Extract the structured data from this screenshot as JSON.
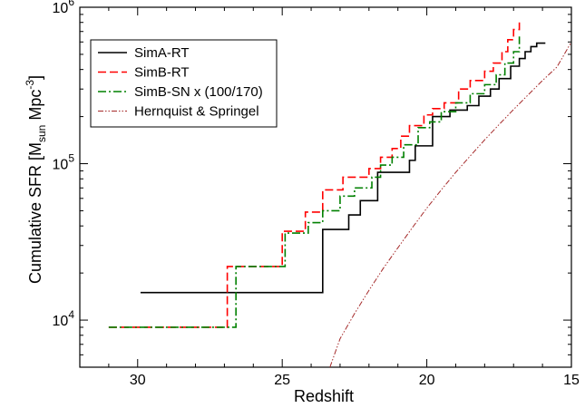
{
  "chart_data": {
    "type": "line",
    "xlabel": "Redshift",
    "ylabel": {
      "base": "Cumulative SFR [M",
      "sub": "sun",
      "mid": " Mpc",
      "sup": "-3",
      "end": "]"
    },
    "xlim": [
      32,
      15
    ],
    "xaxis_reversed": true,
    "ylim": [
      5000,
      1000000
    ],
    "yscale": "log",
    "grid": false,
    "legend_position": "top-left",
    "x_ticks": [
      {
        "value": 30,
        "label": "30"
      },
      {
        "value": 25,
        "label": "25"
      },
      {
        "value": 20,
        "label": "20"
      },
      {
        "value": 15,
        "label": "15"
      }
    ],
    "y_ticks": [
      {
        "value": 10000,
        "base": "10",
        "exp": "4"
      },
      {
        "value": 100000,
        "base": "10",
        "exp": "5"
      },
      {
        "value": 1000000,
        "base": "10",
        "exp": "6"
      }
    ],
    "series": [
      {
        "name": "SimA-RT",
        "color": "#000000",
        "dash": "solid",
        "step": true,
        "points": [
          [
            29.9,
            15000
          ],
          [
            23.6,
            15000
          ],
          [
            23.6,
            38000
          ],
          [
            22.7,
            38000
          ],
          [
            22.7,
            47000
          ],
          [
            22.3,
            47000
          ],
          [
            22.3,
            58000
          ],
          [
            21.7,
            58000
          ],
          [
            21.7,
            88000
          ],
          [
            20.6,
            88000
          ],
          [
            20.6,
            105000
          ],
          [
            20.4,
            105000
          ],
          [
            20.4,
            130000
          ],
          [
            19.8,
            130000
          ],
          [
            19.8,
            200000
          ],
          [
            19.2,
            200000
          ],
          [
            19.2,
            220000
          ],
          [
            18.6,
            220000
          ],
          [
            18.6,
            235000
          ],
          [
            18.2,
            235000
          ],
          [
            18.2,
            270000
          ],
          [
            17.8,
            270000
          ],
          [
            17.8,
            300000
          ],
          [
            17.5,
            300000
          ],
          [
            17.5,
            350000
          ],
          [
            17.1,
            350000
          ],
          [
            17.1,
            420000
          ],
          [
            16.8,
            420000
          ],
          [
            16.8,
            470000
          ],
          [
            16.6,
            470000
          ],
          [
            16.6,
            520000
          ],
          [
            16.4,
            520000
          ],
          [
            16.4,
            560000
          ],
          [
            16.2,
            560000
          ],
          [
            16.2,
            590000
          ],
          [
            15.9,
            590000
          ]
        ]
      },
      {
        "name": "SimB-RT",
        "color": "#ff0000",
        "dash": "dashed",
        "step": true,
        "points": [
          [
            31.0,
            9000
          ],
          [
            26.9,
            9000
          ],
          [
            26.9,
            22000
          ],
          [
            25.0,
            22000
          ],
          [
            25.0,
            37000
          ],
          [
            24.2,
            37000
          ],
          [
            24.2,
            49000
          ],
          [
            23.6,
            49000
          ],
          [
            23.6,
            68000
          ],
          [
            22.9,
            68000
          ],
          [
            22.9,
            82000
          ],
          [
            22.0,
            82000
          ],
          [
            22.0,
            93000
          ],
          [
            21.6,
            93000
          ],
          [
            21.6,
            110000
          ],
          [
            21.2,
            110000
          ],
          [
            21.2,
            125000
          ],
          [
            20.9,
            125000
          ],
          [
            20.9,
            150000
          ],
          [
            20.6,
            150000
          ],
          [
            20.6,
            175000
          ],
          [
            20.1,
            175000
          ],
          [
            20.1,
            205000
          ],
          [
            19.8,
            205000
          ],
          [
            19.8,
            225000
          ],
          [
            19.4,
            225000
          ],
          [
            19.4,
            245000
          ],
          [
            18.9,
            245000
          ],
          [
            18.9,
            300000
          ],
          [
            18.5,
            300000
          ],
          [
            18.5,
            340000
          ],
          [
            18.0,
            340000
          ],
          [
            18.0,
            390000
          ],
          [
            17.7,
            390000
          ],
          [
            17.7,
            440000
          ],
          [
            17.4,
            440000
          ],
          [
            17.4,
            520000
          ],
          [
            17.2,
            520000
          ],
          [
            17.2,
            620000
          ],
          [
            17.0,
            620000
          ],
          [
            17.0,
            720000
          ],
          [
            16.8,
            720000
          ],
          [
            16.8,
            800000
          ]
        ]
      },
      {
        "name": "SimB-SN x (100/170)",
        "color": "#008000",
        "dash": "dashdot",
        "step": true,
        "points": [
          [
            31.0,
            9000
          ],
          [
            26.6,
            9000
          ],
          [
            26.6,
            22000
          ],
          [
            24.9,
            22000
          ],
          [
            24.9,
            36000
          ],
          [
            24.1,
            36000
          ],
          [
            24.1,
            42000
          ],
          [
            23.6,
            42000
          ],
          [
            23.6,
            50000
          ],
          [
            23.0,
            50000
          ],
          [
            23.0,
            62000
          ],
          [
            22.5,
            62000
          ],
          [
            22.5,
            70000
          ],
          [
            21.9,
            70000
          ],
          [
            21.9,
            82000
          ],
          [
            21.6,
            82000
          ],
          [
            21.6,
            98000
          ],
          [
            21.2,
            98000
          ],
          [
            21.2,
            110000
          ],
          [
            20.8,
            110000
          ],
          [
            20.8,
            132000
          ],
          [
            20.3,
            132000
          ],
          [
            20.3,
            170000
          ],
          [
            19.9,
            170000
          ],
          [
            19.9,
            185000
          ],
          [
            19.5,
            185000
          ],
          [
            19.5,
            215000
          ],
          [
            19.0,
            215000
          ],
          [
            19.0,
            245000
          ],
          [
            18.5,
            245000
          ],
          [
            18.5,
            280000
          ],
          [
            18.0,
            280000
          ],
          [
            18.0,
            320000
          ],
          [
            17.6,
            320000
          ],
          [
            17.6,
            370000
          ],
          [
            17.3,
            370000
          ],
          [
            17.3,
            440000
          ],
          [
            17.0,
            440000
          ],
          [
            17.0,
            520000
          ],
          [
            16.8,
            520000
          ],
          [
            16.8,
            650000
          ]
        ]
      },
      {
        "name": "Hernquist & Springel",
        "color": "#a52a2a",
        "dash": "dashdotdot",
        "step": false,
        "points": [
          [
            23.35,
            5000
          ],
          [
            23.0,
            7600
          ],
          [
            22.5,
            11000
          ],
          [
            22.0,
            15500
          ],
          [
            21.5,
            21500
          ],
          [
            21.0,
            29000
          ],
          [
            20.5,
            39000
          ],
          [
            20.0,
            52000
          ],
          [
            19.5,
            68000
          ],
          [
            19.0,
            88000
          ],
          [
            18.5,
            112000
          ],
          [
            18.0,
            142000
          ],
          [
            17.5,
            178000
          ],
          [
            17.0,
            222000
          ],
          [
            16.5,
            275000
          ],
          [
            16.0,
            340000
          ],
          [
            15.5,
            415000
          ],
          [
            15.0,
            600000
          ]
        ]
      }
    ]
  }
}
